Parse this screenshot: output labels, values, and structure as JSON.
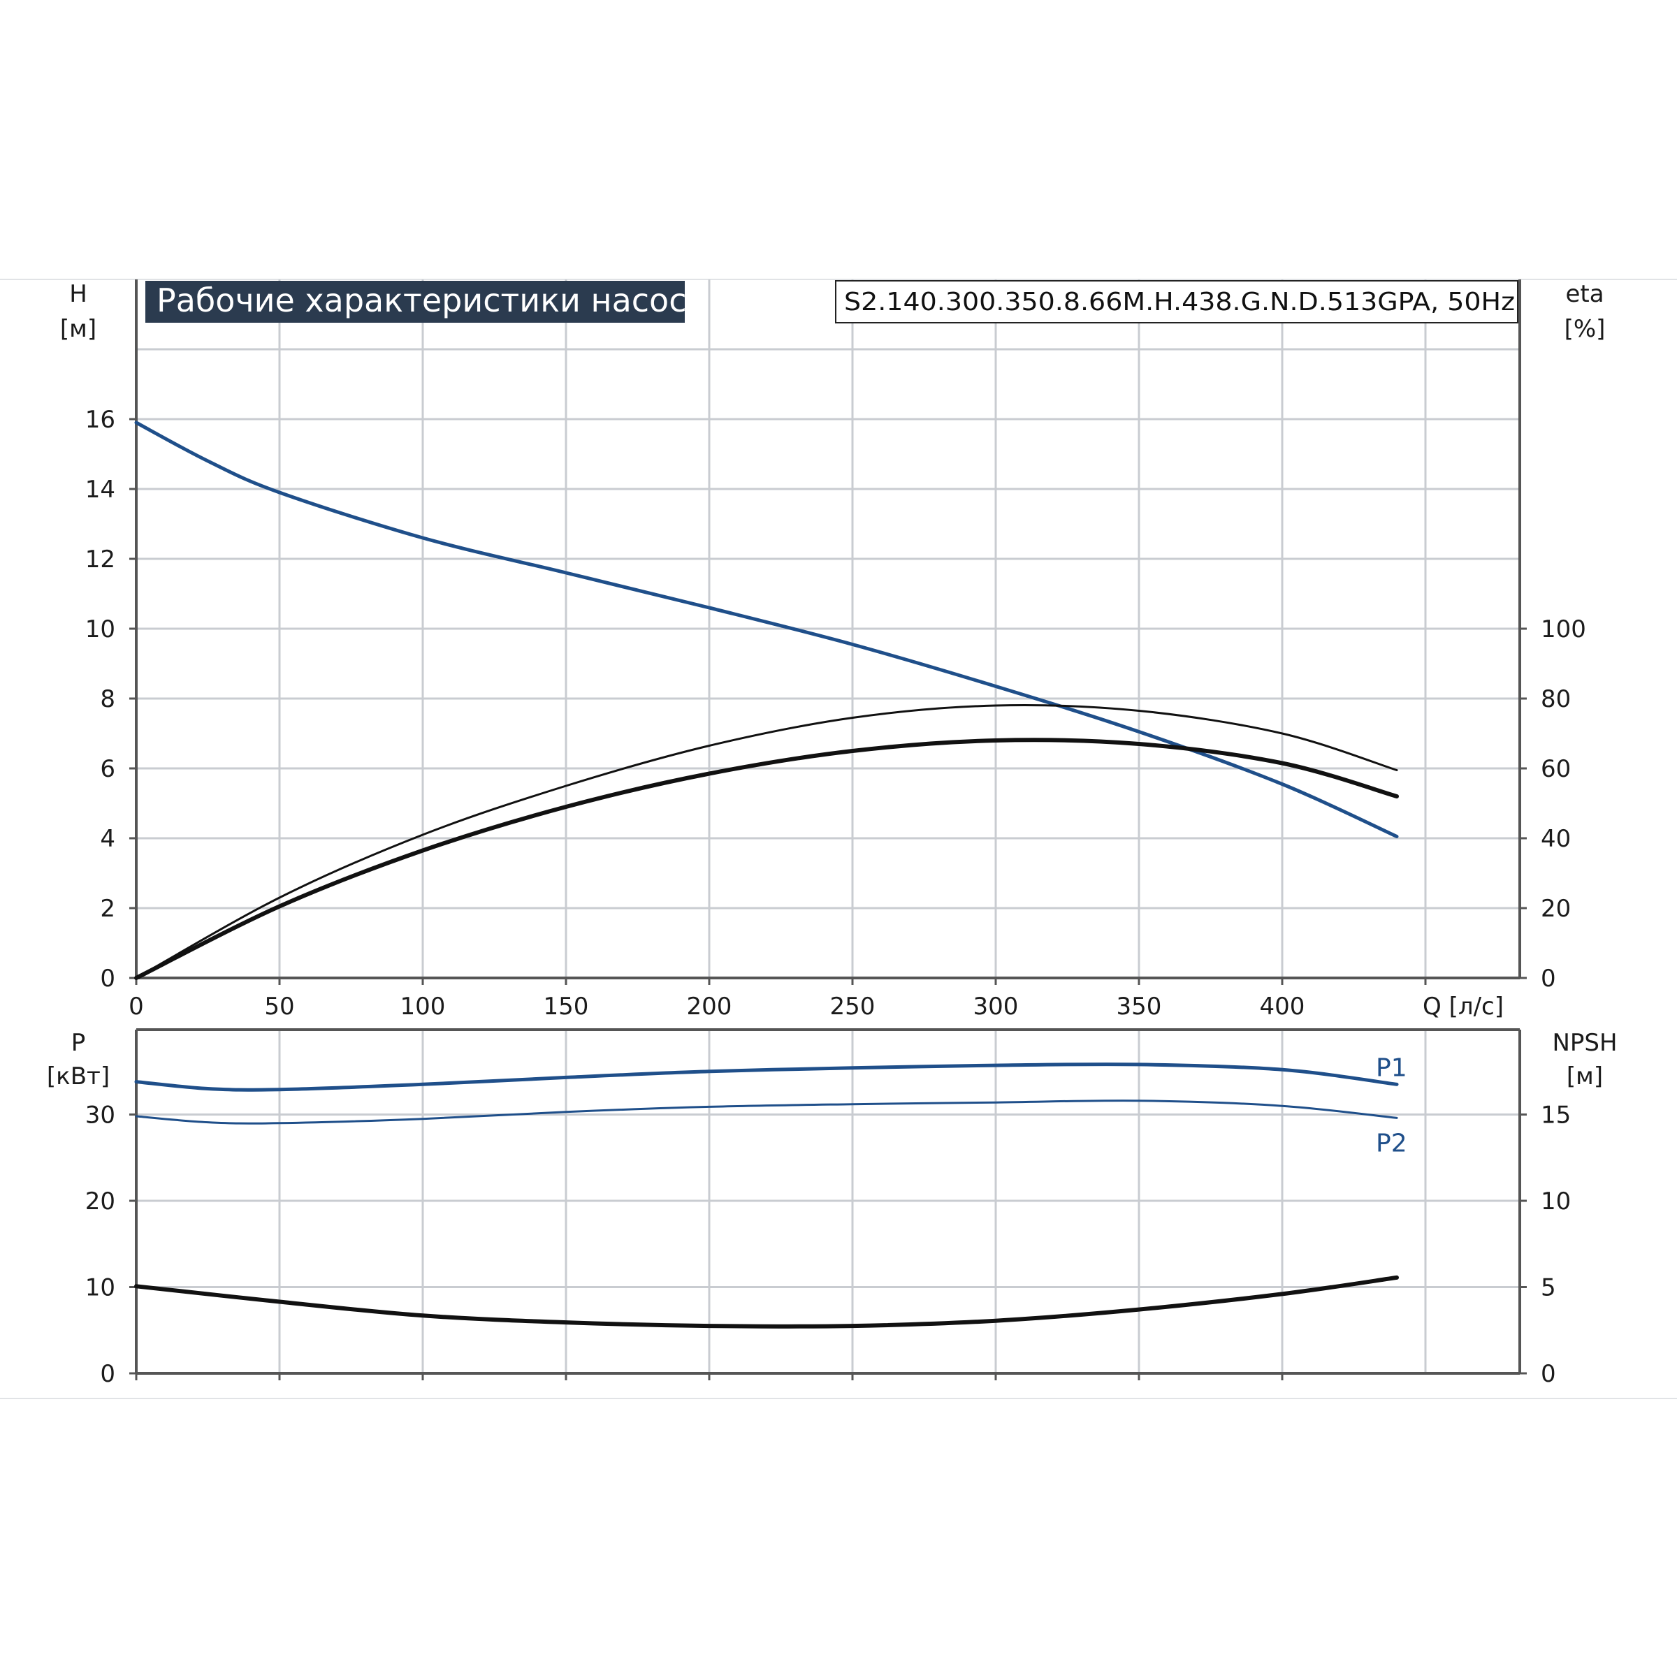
{
  "title": "Рабочие характеристики насоса",
  "model": "S2.140.300.350.8.66M.H.438.G.N.D.513GPA, 50Hz",
  "colors": {
    "blue": "#1f4f8a",
    "black": "#111111",
    "grid": "#c9ccd1",
    "title_bg": "#2b3b4f"
  },
  "chart_data": [
    {
      "type": "line",
      "x_ticks": [
        "0",
        "50",
        "100",
        "150",
        "200",
        "250",
        "300",
        "350",
        "400"
      ],
      "x_label": "Q [л/с]",
      "xlim": [
        0,
        450
      ],
      "y_left": {
        "label": "H",
        "unit": "[м]",
        "ticks": [
          "0",
          "2",
          "4",
          "6",
          "8",
          "10",
          "12",
          "14",
          "16"
        ],
        "lim": [
          0,
          18
        ]
      },
      "y_right": {
        "label": "eta",
        "unit": "[%]",
        "ticks": [
          "0",
          "20",
          "40",
          "60",
          "80",
          "100"
        ],
        "lim": [
          0,
          180
        ]
      },
      "series": [
        {
          "key": "H",
          "axis": "left",
          "color": "#1f4f8a",
          "width": 5,
          "x": [
            0,
            25,
            50,
            100,
            150,
            200,
            250,
            300,
            350,
            400,
            440
          ],
          "y": [
            15.9,
            14.8,
            13.9,
            12.6,
            11.6,
            10.6,
            9.55,
            8.35,
            7.05,
            5.55,
            4.05
          ]
        },
        {
          "key": "eta_thin",
          "axis": "right",
          "color": "#111111",
          "width": 3,
          "x": [
            0,
            50,
            100,
            150,
            200,
            250,
            300,
            350,
            400,
            440
          ],
          "y": [
            0,
            23,
            41,
            55,
            66.5,
            74.5,
            78,
            76.5,
            70,
            59.5
          ]
        },
        {
          "key": "eta_thick",
          "axis": "right",
          "color": "#111111",
          "width": 6,
          "x": [
            0,
            50,
            100,
            150,
            200,
            250,
            300,
            350,
            400,
            440
          ],
          "y": [
            0,
            20.5,
            36.5,
            49,
            58.5,
            65,
            68,
            67,
            61.5,
            52
          ]
        }
      ]
    },
    {
      "type": "line",
      "x_ticks": [
        "0",
        "50",
        "100",
        "150",
        "200",
        "250",
        "300",
        "350",
        "400"
      ],
      "xlim": [
        0,
        450
      ],
      "y_left": {
        "label": "P",
        "unit": "[кВт]",
        "ticks": [
          "0",
          "10",
          "20",
          "30"
        ],
        "lim": [
          0,
          40
        ]
      },
      "y_right": {
        "label": "NPSH",
        "unit": "[м]",
        "ticks": [
          "0",
          "5",
          "10",
          "15"
        ],
        "lim": [
          0,
          20
        ]
      },
      "series": [
        {
          "name": "P1",
          "axis": "left",
          "color": "#1f4f8a",
          "width": 5,
          "x": [
            0,
            25,
            50,
            100,
            150,
            200,
            250,
            300,
            350,
            400,
            440
          ],
          "y": [
            33.8,
            33.0,
            32.9,
            33.5,
            34.3,
            35.0,
            35.4,
            35.7,
            35.8,
            35.2,
            33.5
          ]
        },
        {
          "name": "P2",
          "axis": "left",
          "color": "#1f4f8a",
          "width": 3,
          "x": [
            0,
            25,
            50,
            100,
            150,
            200,
            250,
            300,
            350,
            400,
            440
          ],
          "y": [
            29.8,
            29.1,
            29.0,
            29.5,
            30.3,
            30.9,
            31.2,
            31.4,
            31.6,
            31.0,
            29.6
          ]
        },
        {
          "key": "NPSH",
          "axis": "right",
          "color": "#111111",
          "width": 6,
          "x": [
            0,
            50,
            100,
            150,
            200,
            250,
            300,
            350,
            400,
            440
          ],
          "y": [
            5.05,
            4.15,
            3.35,
            2.95,
            2.75,
            2.75,
            3.05,
            3.7,
            4.6,
            5.55
          ]
        }
      ]
    }
  ]
}
